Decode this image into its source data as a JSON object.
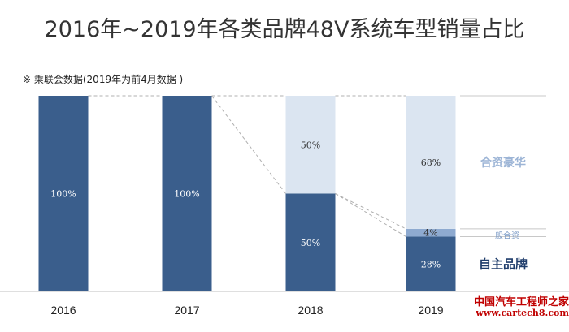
{
  "title": "2016年~2019年各类品牌48V系统车型销量占比",
  "note": "※ 乘联会数据(2019年为前4月数据 )",
  "colors": {
    "domestic": "#3a5e8c",
    "mainstream_jv": "#8eaad0",
    "luxury_jv": "#dbe5f1"
  },
  "chart_data": {
    "type": "bar",
    "stacked": true,
    "categories": [
      "2016",
      "2017",
      "2018",
      "2019"
    ],
    "series": [
      {
        "name": "自主品牌",
        "values": [
          100,
          100,
          50,
          28
        ],
        "labels": [
          "100%",
          "100%",
          "50%",
          "28%"
        ]
      },
      {
        "name": "一般合资",
        "values": [
          0,
          0,
          0,
          4
        ],
        "labels": [
          "",
          "",
          "",
          "4%"
        ]
      },
      {
        "name": "合资豪华",
        "values": [
          0,
          0,
          50,
          68
        ],
        "labels": [
          "",
          "",
          "50%",
          "68%"
        ]
      }
    ],
    "ylim": [
      0,
      100
    ],
    "grid": false,
    "legend": "right"
  },
  "watermark": {
    "line1": "中国汽车工程师之家",
    "line2": "www.cartech8.com"
  }
}
